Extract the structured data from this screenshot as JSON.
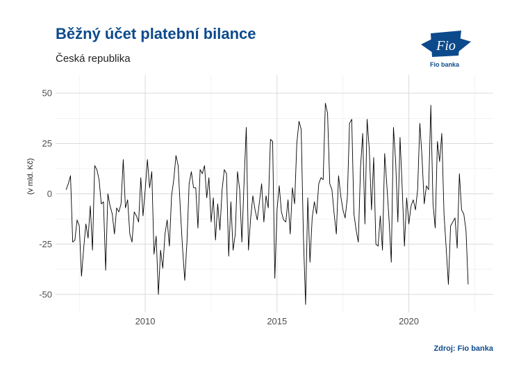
{
  "header": {
    "title": "Běžný účet platební bilance",
    "subtitle": "Česká republika"
  },
  "logo": {
    "mark": "Fio",
    "name": "Fio banka",
    "color": "#0d4a8c"
  },
  "footer": {
    "source": "Zdroj: Fio banka"
  },
  "chart_data": {
    "type": "line",
    "title": "Běžný účet platební bilance",
    "subtitle": "Česká republika",
    "ylabel": "(v mld. Kč)",
    "xlabel": "",
    "xlim": [
      2006.6,
      2023.2
    ],
    "ylim": [
      -59,
      59
    ],
    "x_ticks": [
      2010,
      2015,
      2020
    ],
    "x_tick_labels": [
      "2010",
      "2015",
      "2020"
    ],
    "y_ticks": [
      -50,
      -25,
      0,
      25,
      50
    ],
    "y_tick_labels": [
      "-50",
      "-25",
      "0",
      "25",
      "50"
    ],
    "grid": true,
    "line_color": "#000000",
    "series": [
      {
        "start_year": 2007,
        "frequency": "monthly",
        "values": [
          2,
          5,
          9,
          -24,
          -23,
          -13,
          -16,
          -41,
          -27,
          -15,
          -22,
          -6,
          -28,
          14,
          12,
          7,
          -5,
          -4,
          -38,
          0,
          -6,
          -10,
          -20,
          -7,
          -9,
          -5,
          17,
          -7,
          -3,
          -20,
          -24,
          -9,
          -11,
          -14,
          8,
          -11,
          2,
          17,
          3,
          11,
          -30,
          -21,
          -50,
          -28,
          -37,
          -20,
          -13,
          -26,
          -1,
          7,
          19,
          14,
          -8,
          -27,
          -43,
          -24,
          5,
          11,
          3,
          3,
          -17,
          12,
          10,
          14,
          -2,
          8,
          -14,
          -2,
          -23,
          -5,
          -18,
          2,
          12,
          10,
          -31,
          -4,
          -28,
          -20,
          11,
          2,
          -24,
          6,
          33,
          -28,
          -12,
          -1,
          -8,
          -13,
          -4,
          5,
          -14,
          -1,
          -7,
          27,
          26,
          -42,
          -8,
          4,
          -9,
          -13,
          -14,
          -3,
          -20,
          3,
          -5,
          25,
          36,
          32,
          -21,
          -55,
          -2,
          -34,
          -12,
          -4,
          -10,
          5,
          8,
          7,
          45,
          40,
          5,
          2,
          -10,
          -20,
          9,
          -1,
          -8,
          -12,
          -2,
          35,
          37,
          -10,
          -18,
          -24,
          13,
          30,
          -15,
          37,
          22,
          -8,
          18,
          -25,
          -26,
          -11,
          -28,
          20,
          4,
          -13,
          -34,
          33,
          16,
          -14,
          28,
          2,
          -26,
          -2,
          -15,
          -6,
          -3,
          -8,
          2,
          35,
          18,
          -5,
          4,
          2,
          44,
          -5,
          -17,
          26,
          16,
          30,
          -10,
          -27,
          -45,
          -16,
          -14,
          -12,
          -27,
          10,
          -8,
          -10,
          -18,
          -45
        ]
      }
    ]
  }
}
